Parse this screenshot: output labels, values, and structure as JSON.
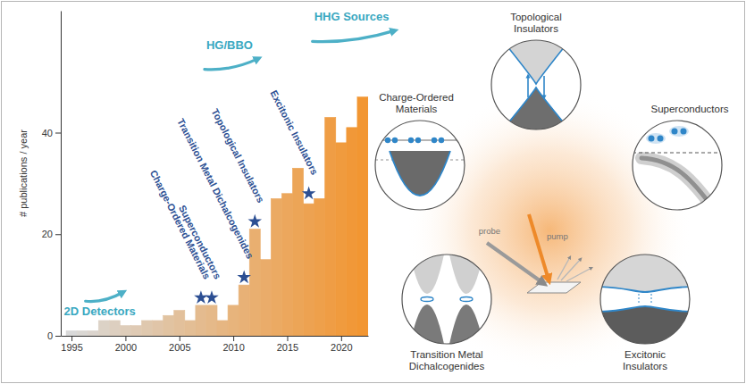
{
  "chart_data": {
    "type": "histogram",
    "y_label": "# publications / year",
    "bins": [
      1994.5,
      1995.5,
      1996.5,
      1997.5,
      1998.5,
      1999.5,
      2000.5,
      2001.5,
      2002.5,
      2003.5,
      2004.5,
      2005.5,
      2006.5,
      2007.5,
      2008.5,
      2009.5,
      2010.5,
      2011.5,
      2012.5,
      2013.5,
      2014.5,
      2015.5,
      2016.5,
      2017.5,
      2018.5,
      2019.5,
      2020.5,
      2021.5,
      2022.5
    ],
    "values": [
      1,
      1,
      1,
      3,
      3,
      2,
      2,
      3,
      3,
      4,
      5,
      3,
      6,
      6,
      3,
      6,
      10,
      21,
      15,
      27,
      28,
      33,
      26,
      27,
      43,
      38,
      41,
      47
    ],
    "colors": [
      "#d9d9d9",
      "#dad7d3",
      "#dbd4cd",
      "#dcd2c6",
      "#ddcfc0",
      "#decdba",
      "#dfcab4",
      "#dfc8ae",
      "#e0c5a8",
      "#e1c3a1",
      "#e2c09b",
      "#e3be95",
      "#e4bb8f",
      "#e5b989",
      "#e6b682",
      "#e7b47c",
      "#e8b176",
      "#e9af70",
      "#eaac6a",
      "#ebaa63",
      "#eca75d",
      "#eca557",
      "#eda251",
      "#eea04b",
      "#ef9d45",
      "#f09b3e",
      "#f19838",
      "#f29632"
    ],
    "xlim": [
      1994,
      2022.5
    ],
    "xticks": [
      1995,
      2000,
      2005,
      2010,
      2015,
      2020
    ],
    "ylim": [
      0,
      64
    ],
    "yticks": [
      0,
      20,
      40
    ],
    "events": [
      {
        "text": "Charge-Ordered Materials",
        "x": 2007,
        "y": 7.5
      },
      {
        "text": "Superconductors",
        "x": 2008,
        "y": 7.5
      },
      {
        "text": "Transition Metal Dichalcogenides",
        "x": 2011,
        "y": 11.5
      },
      {
        "text": "Topological Insulators",
        "x": 2012,
        "y": 22.5
      },
      {
        "text": "Excitonic Insulators",
        "x": 2017,
        "y": 28
      }
    ],
    "methods": [
      {
        "text": "2D Detectors",
        "x": 1994.3,
        "y": 4
      },
      {
        "text": "HG/BBO",
        "x": 2007.5,
        "y": 56.5
      },
      {
        "text": "HHG Sources",
        "x": 2017.5,
        "y": 62
      }
    ]
  },
  "diagram": {
    "beams": [
      "probe",
      "pump"
    ],
    "materials": [
      "Topological Insulators",
      "Superconductors",
      "Excitonic Insulators",
      "Transition Metal Dichalcogenides",
      "Charge-Ordered Materials"
    ]
  }
}
